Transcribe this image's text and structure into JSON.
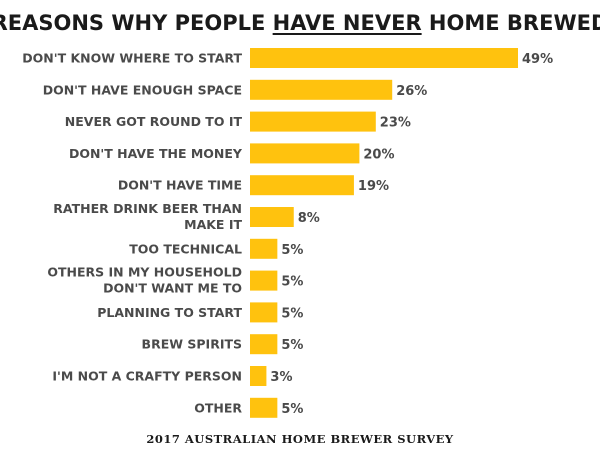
{
  "chart_data": {
    "type": "bar",
    "orientation": "horizontal",
    "title_parts": [
      "REASONS WHY PEOPLE ",
      "HAVE NEVER",
      " HOME BREWED"
    ],
    "categories": [
      "DON'T KNOW WHERE TO START",
      "DON'T HAVE ENOUGH SPACE",
      "NEVER GOT ROUND TO IT",
      "DON'T HAVE THE MONEY",
      "DON'T HAVE TIME",
      "RATHER DRINK BEER THAN MAKE IT",
      "TOO TECHNICAL",
      "OTHERS IN MY HOUSEHOLD DON'T WANT ME TO",
      "PLANNING TO START",
      "BREW SPIRITS",
      "I'M NOT A CRAFTY PERSON",
      "OTHER"
    ],
    "values": [
      49,
      26,
      23,
      20,
      19,
      8,
      5,
      5,
      5,
      5,
      3,
      5
    ],
    "value_labels": [
      "49%",
      "26%",
      "23%",
      "20%",
      "19%",
      "8%",
      "5%",
      "5%",
      "5%",
      "5%",
      "3%",
      "5%"
    ],
    "value_unit": "%",
    "xlim": [
      0,
      49
    ],
    "bar_color": "#FFC20E",
    "grid": false,
    "legend": "none",
    "source_note": "2017 AUSTRALIAN HOME BREWER SURVEY"
  }
}
